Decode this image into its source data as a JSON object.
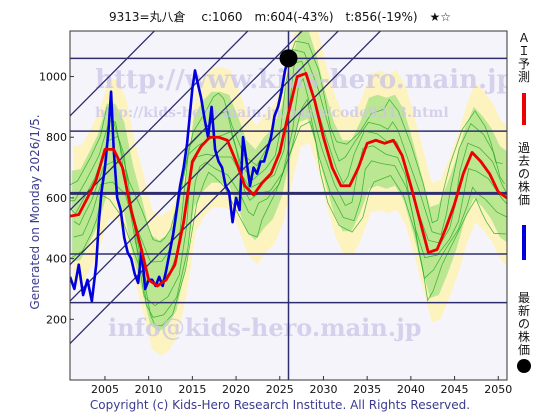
{
  "header": {
    "title": "9313=丸八倉　 c:1060　m:604(-43%)　t:856(-19%)　★☆",
    "generated": "Generated on Monday 2026/1/5.",
    "copyright": "Copyright (c) Kids-Hero Research Institute. All Rights Reserved."
  },
  "watermark": {
    "url1": "http://www.kids-hero.main.jp/",
    "url2": "http://kids-hero.main.jp/basis/code9313.html",
    "email": "info@kids-hero.main.jp"
  },
  "legend": {
    "ai_forecast": "ＡＩ予測",
    "past_price": "過去の株価",
    "latest_price": "最新の株価"
  },
  "colors": {
    "ai_forecast": "#ee0000",
    "past_price": "#0000dd",
    "latest_dot": "#000000",
    "band_fill": "#99e07a",
    "band_line": "#22aa22",
    "yellow_fill": "#fff3b0",
    "channel": "#2e2e6e"
  },
  "chart_data": {
    "type": "line",
    "xlim": [
      2001,
      2051
    ],
    "ylim": [
      0,
      1150
    ],
    "x_ticks": [
      2005,
      2010,
      2015,
      2020,
      2025,
      2030,
      2035,
      2040,
      2045,
      2050
    ],
    "y_ticks": [
      200,
      400,
      600,
      800,
      1000
    ],
    "hlines": [
      255,
      415,
      615,
      820,
      1060
    ],
    "vline": 2026.0,
    "latest_point": {
      "x": 2026.0,
      "y": 1060
    },
    "channel_lines": [
      {
        "x": [
          2001,
          2051
        ],
        "y": [
          120,
          1570
        ]
      },
      {
        "x": [
          2001,
          2051
        ],
        "y": [
          260,
          1710
        ]
      },
      {
        "x": [
          2001,
          2051
        ],
        "y": [
          380,
          1830
        ]
      },
      {
        "x": [
          2001,
          2051
        ],
        "y": [
          560,
          2010
        ]
      },
      {
        "x": [
          2001,
          2051
        ],
        "y": [
          870,
          2320
        ]
      }
    ],
    "series": [
      {
        "name": "過去の株価",
        "x": [
          2001.0,
          2001.5,
          2002.0,
          2002.5,
          2003.0,
          2003.5,
          2004.0,
          2004.3,
          2004.6,
          2005.0,
          2005.4,
          2005.7,
          2006.0,
          2006.4,
          2006.8,
          2007.2,
          2007.6,
          2008.0,
          2008.4,
          2008.8,
          2009.2,
          2009.6,
          2010.0,
          2010.4,
          2010.8,
          2011.2,
          2011.6,
          2012.0,
          2012.4,
          2012.8,
          2013.2,
          2013.6,
          2014.0,
          2014.4,
          2014.8,
          2015.0,
          2015.3,
          2015.6,
          2016.0,
          2016.4,
          2016.8,
          2017.2,
          2017.6,
          2018.0,
          2018.4,
          2018.8,
          2019.2,
          2019.6,
          2020.0,
          2020.4,
          2020.8,
          2021.2,
          2021.6,
          2022.0,
          2022.4,
          2022.8,
          2023.2,
          2023.6,
          2024.0,
          2024.4,
          2024.8,
          2025.2,
          2025.6,
          2026.0
        ],
        "y": [
          340,
          300,
          380,
          280,
          330,
          260,
          380,
          520,
          620,
          700,
          820,
          950,
          760,
          600,
          560,
          470,
          420,
          400,
          350,
          320,
          430,
          300,
          330,
          330,
          310,
          340,
          310,
          360,
          420,
          480,
          560,
          640,
          700,
          780,
          900,
          960,
          1020,
          980,
          930,
          860,
          800,
          900,
          760,
          720,
          700,
          640,
          620,
          520,
          600,
          560,
          800,
          720,
          640,
          700,
          680,
          720,
          720,
          760,
          800,
          870,
          900,
          950,
          1020,
          1060
        ]
      },
      {
        "name": "ＡＩ予測",
        "x": [
          2001,
          2002,
          2003,
          2004,
          2005,
          2006,
          2007,
          2008,
          2009,
          2010,
          2011,
          2012,
          2013,
          2014,
          2015,
          2016,
          2017,
          2018,
          2019,
          2020,
          2021,
          2022,
          2023,
          2024,
          2025,
          2026,
          2027,
          2028,
          2029,
          2030,
          2031,
          2032,
          2033,
          2034,
          2035,
          2036,
          2037,
          2038,
          2039,
          2040,
          2041,
          2042,
          2043,
          2044,
          2045,
          2046,
          2047,
          2048,
          2049,
          2050,
          2051
        ],
        "y": [
          540,
          545,
          600,
          660,
          760,
          760,
          700,
          560,
          450,
          330,
          310,
          330,
          380,
          520,
          720,
          770,
          800,
          800,
          790,
          720,
          640,
          610,
          650,
          680,
          750,
          880,
          1000,
          1010,
          920,
          800,
          700,
          640,
          640,
          700,
          780,
          790,
          780,
          790,
          740,
          640,
          530,
          420,
          430,
          500,
          580,
          680,
          750,
          720,
          680,
          620,
          600
        ]
      }
    ]
  }
}
